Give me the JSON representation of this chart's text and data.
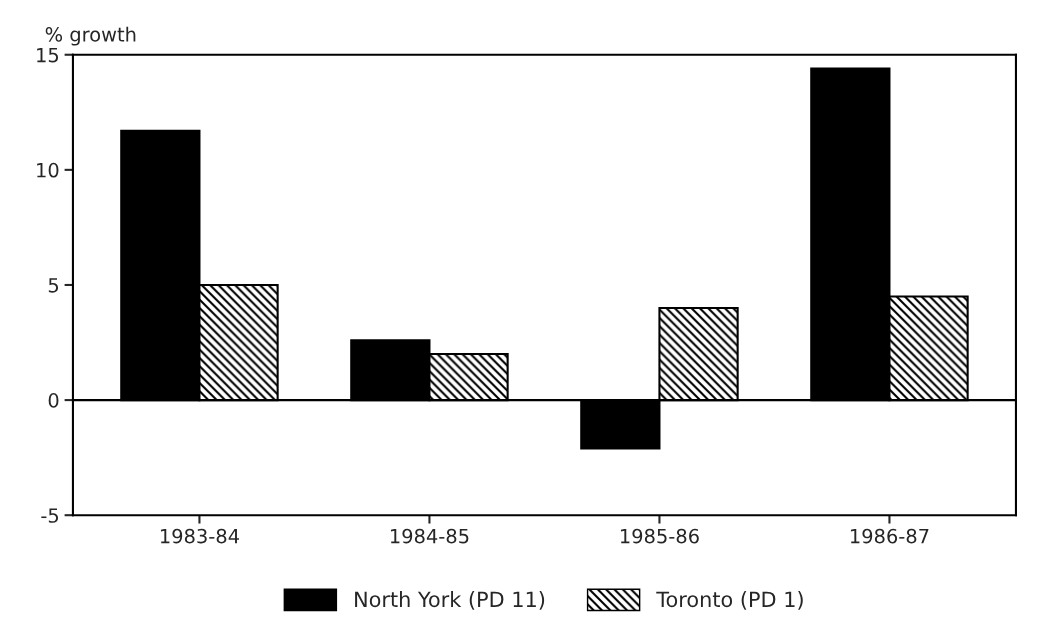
{
  "chart_data": {
    "type": "bar",
    "ylabel": "% growth",
    "categories": [
      "1983-84",
      "1984-85",
      "1985-86",
      "1986-87"
    ],
    "series": [
      {
        "name": "North York (PD 11)",
        "color": "#000000",
        "values": [
          11.7,
          2.6,
          -2.1,
          14.4
        ]
      },
      {
        "name": "Toronto (PD 1)",
        "color": "#000000",
        "values": [
          5.0,
          2.0,
          4.0,
          4.5
        ]
      }
    ],
    "ylim": [
      -5,
      15
    ],
    "yticks": [
      -5,
      0,
      5,
      10,
      15
    ],
    "ref_lines": [
      {
        "axis": "y",
        "value": 0,
        "color": "#000000"
      }
    ],
    "grid": false,
    "legend": "bottom"
  }
}
